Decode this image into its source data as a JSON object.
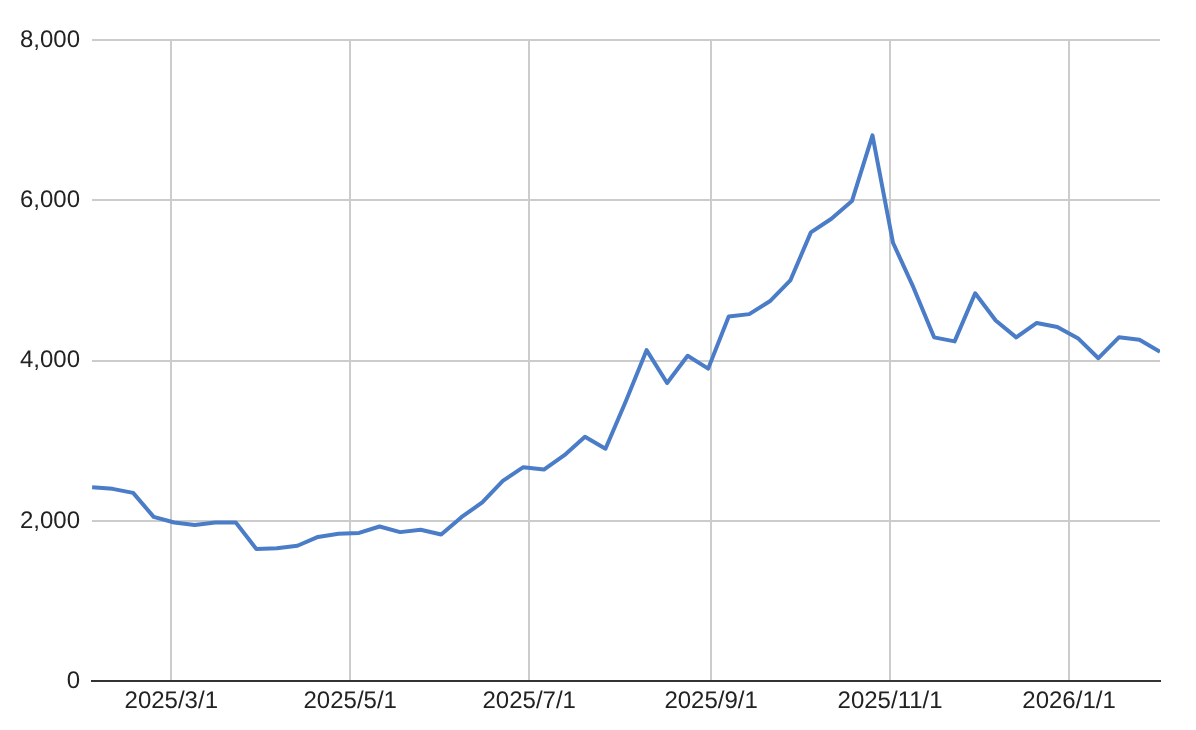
{
  "chart_data": {
    "type": "line",
    "x": [
      "2025-02-02",
      "2025-02-09",
      "2025-02-16",
      "2025-02-23",
      "2025-03-02",
      "2025-03-09",
      "2025-03-16",
      "2025-03-23",
      "2025-03-30",
      "2025-04-06",
      "2025-04-13",
      "2025-04-20",
      "2025-04-27",
      "2025-05-04",
      "2025-05-11",
      "2025-05-18",
      "2025-05-25",
      "2025-06-01",
      "2025-06-08",
      "2025-06-15",
      "2025-06-22",
      "2025-06-29",
      "2025-07-06",
      "2025-07-13",
      "2025-07-20",
      "2025-07-27",
      "2025-08-03",
      "2025-08-10",
      "2025-08-17",
      "2025-08-24",
      "2025-08-31",
      "2025-09-07",
      "2025-09-14",
      "2025-09-21",
      "2025-09-28",
      "2025-10-05",
      "2025-10-12",
      "2025-10-19",
      "2025-10-26",
      "2025-11-02",
      "2025-11-09",
      "2025-11-16",
      "2025-11-23",
      "2025-11-30",
      "2025-12-07",
      "2025-12-14",
      "2025-12-21",
      "2025-12-28",
      "2026-01-04",
      "2026-01-11",
      "2026-01-18",
      "2026-01-25",
      "2026-02-01"
    ],
    "series": [
      {
        "color": "#4a7cc7",
        "values": [
          2420,
          2400,
          2350,
          2050,
          1980,
          1950,
          1980,
          1980,
          1650,
          1660,
          1690,
          1800,
          1840,
          1850,
          1930,
          1860,
          1890,
          1830,
          2050,
          2230,
          2500,
          2670,
          2640,
          2820,
          3050,
          2900,
          3500,
          4130,
          3720,
          4060,
          3900,
          4550,
          4580,
          4740,
          5000,
          5600,
          5770,
          5990,
          6810,
          5470,
          4910,
          4290,
          4240,
          4840,
          4500,
          4290,
          4470,
          4420,
          4280,
          4030,
          4290,
          4260,
          4110
        ]
      }
    ],
    "xlim": [
      "2025-02-02",
      "2026-02-01"
    ],
    "xticks": [
      {
        "value": "2025-03-01",
        "label": "2025/3/1"
      },
      {
        "value": "2025-05-01",
        "label": "2025/5/1"
      },
      {
        "value": "2025-07-01",
        "label": "2025/7/1"
      },
      {
        "value": "2025-09-01",
        "label": "2025/9/1"
      },
      {
        "value": "2025-11-01",
        "label": "2025/11/1"
      },
      {
        "value": "2026-01-01",
        "label": "2026/1/1"
      }
    ],
    "ylim": [
      0,
      8000
    ],
    "yticks": [
      0,
      {
        "value": 2000,
        "label": "2,000"
      },
      {
        "value": 4000,
        "label": "4,000"
      },
      {
        "value": 6000,
        "label": "6,000"
      },
      {
        "value": 8000,
        "label": "8,000"
      }
    ],
    "grid": true,
    "legend": false,
    "marker": "none",
    "line_style": "solid"
  }
}
